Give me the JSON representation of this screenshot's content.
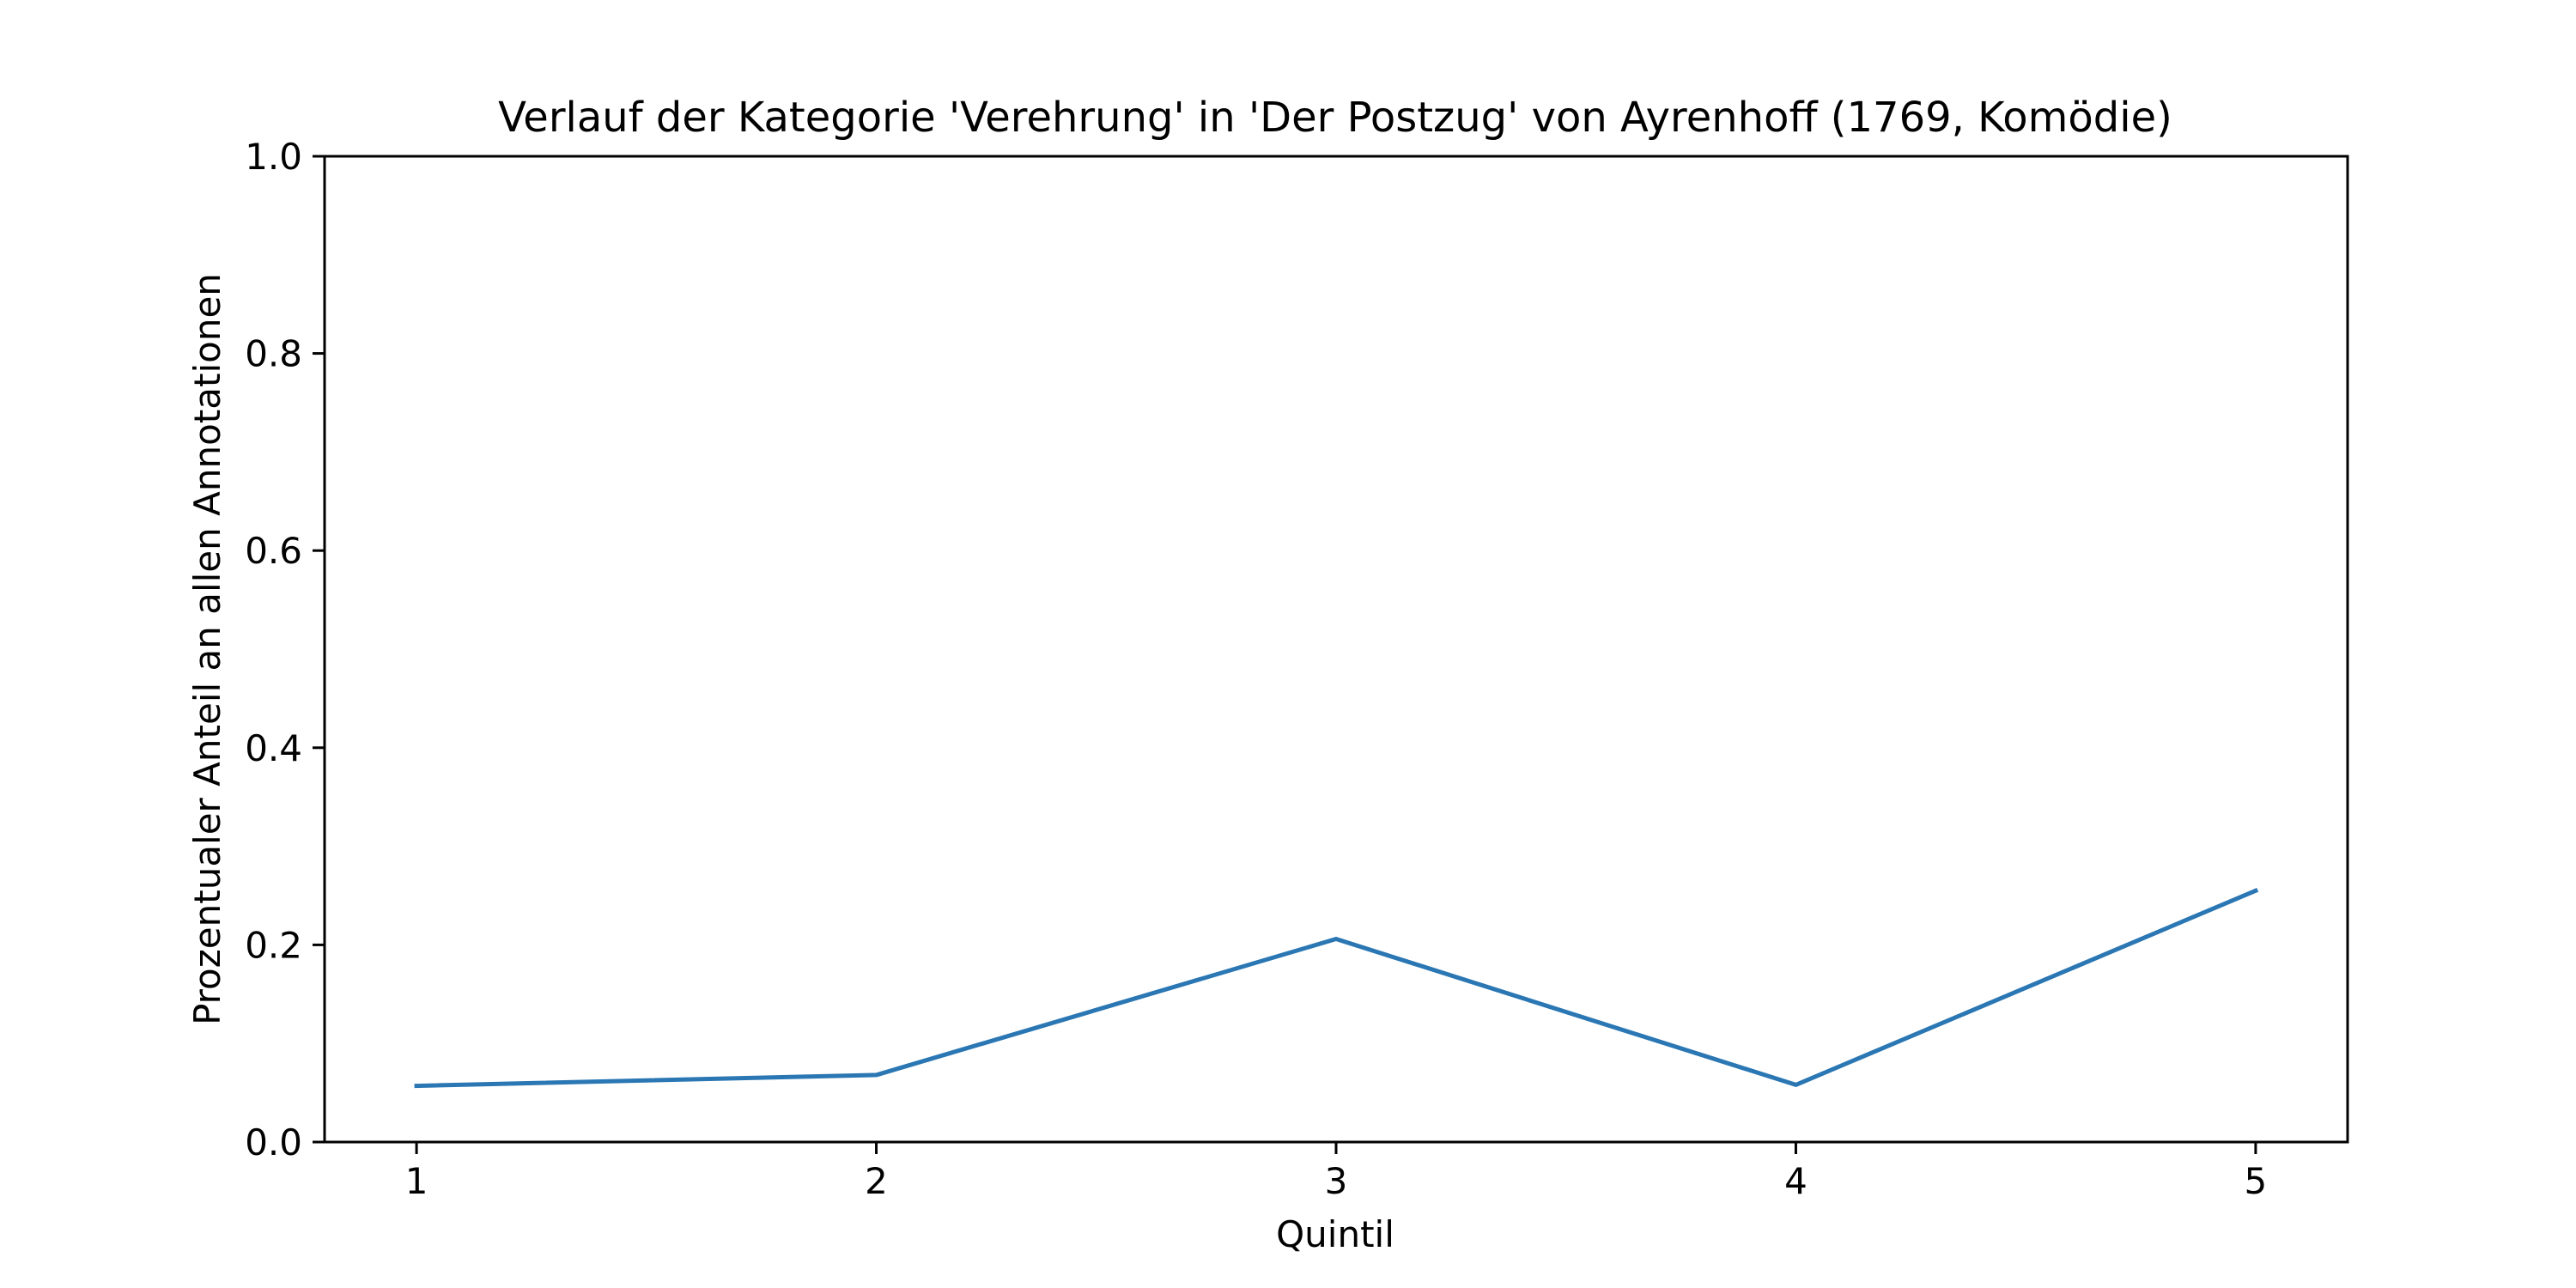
{
  "chart_data": {
    "type": "line",
    "title": "Verlauf der Kategorie 'Verehrung' in 'Der Postzug' von Ayrenhoff (1769, Komödie)",
    "xlabel": "Quintil",
    "ylabel": "Prozentualer Anteil an allen Annotationen",
    "x": [
      1,
      2,
      3,
      4,
      5
    ],
    "series": [
      {
        "values": [
          0.057,
          0.068,
          0.206,
          0.058,
          0.255
        ],
        "color": "#2a77b4"
      }
    ],
    "xlim": [
      0.8,
      5.2
    ],
    "ylim": [
      0,
      1.0
    ],
    "xticks": [
      "1",
      "2",
      "3",
      "4",
      "5"
    ],
    "yticks": [
      "0.0",
      "0.2",
      "0.4",
      "0.6",
      "0.8",
      "1.0"
    ],
    "grid": false,
    "legend": false
  }
}
